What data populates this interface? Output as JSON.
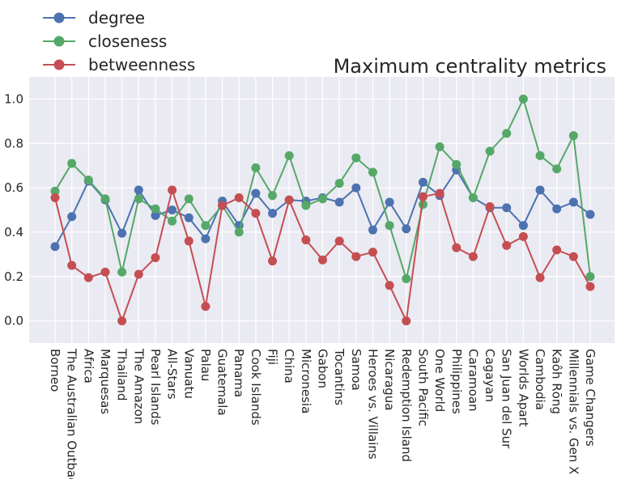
{
  "chart_data": {
    "type": "line",
    "title": "Maximum centrality metrics",
    "xlabel": "",
    "ylabel": "",
    "ylim": [
      -0.1,
      1.1
    ],
    "yticks": [
      0.0,
      0.2,
      0.4,
      0.6,
      0.8,
      1.0
    ],
    "ytick_labels": [
      "0.0",
      "0.2",
      "0.4",
      "0.6",
      "0.8",
      "1.0"
    ],
    "grid": true,
    "legend_position": "top-left",
    "categories": [
      "Borneo",
      "The Australian Outback",
      "Africa",
      "Marquesas",
      "Thailand",
      "The Amazon",
      "Pearl Islands",
      "All-Stars",
      "Vanuatu",
      "Palau",
      "Guatemala",
      "Panama",
      "Cook Islands",
      "Fiji",
      "China",
      "Micronesia",
      "Gabon",
      "Tocantins",
      "Samoa",
      "Heroes vs. Villains",
      "Nicaragua",
      "Redemption Island",
      "South Pacific",
      "One World",
      "Philippines",
      "Caramoan",
      "Cagayan",
      "San Juan del Sur",
      "Worlds Apart",
      "Cambodia",
      "Kaôh Rōng",
      "Millennials vs. Gen X",
      "Game Changers"
    ],
    "series": [
      {
        "name": "degree",
        "color": "#4c72b0",
        "values": [
          0.335,
          0.47,
          0.63,
          0.545,
          0.395,
          0.59,
          0.475,
          0.5,
          0.465,
          0.37,
          0.54,
          0.43,
          0.575,
          0.485,
          0.545,
          0.54,
          0.555,
          0.535,
          0.6,
          0.41,
          0.535,
          0.415,
          0.625,
          0.565,
          0.68,
          0.555,
          0.51,
          0.51,
          0.43,
          0.59,
          0.505,
          0.535,
          0.48
        ]
      },
      {
        "name": "closeness",
        "color": "#55a868",
        "values": [
          0.585,
          0.71,
          0.635,
          0.55,
          0.22,
          0.55,
          0.505,
          0.45,
          0.55,
          0.43,
          0.52,
          0.4,
          0.69,
          0.565,
          0.745,
          0.52,
          0.55,
          0.62,
          0.735,
          0.67,
          0.43,
          0.19,
          0.525,
          0.785,
          0.705,
          0.555,
          0.765,
          0.845,
          1.0,
          0.745,
          0.685,
          0.835,
          0.2
        ]
      },
      {
        "name": "betweenness",
        "color": "#c44e52",
        "values": [
          0.555,
          0.25,
          0.195,
          0.22,
          0.0,
          0.21,
          0.285,
          0.59,
          0.36,
          0.065,
          0.52,
          0.555,
          0.485,
          0.27,
          0.545,
          0.365,
          0.275,
          0.36,
          0.29,
          0.31,
          0.16,
          0.0,
          0.56,
          0.575,
          0.33,
          0.29,
          0.515,
          0.34,
          0.38,
          0.195,
          0.32,
          0.29,
          0.155
        ]
      }
    ]
  }
}
